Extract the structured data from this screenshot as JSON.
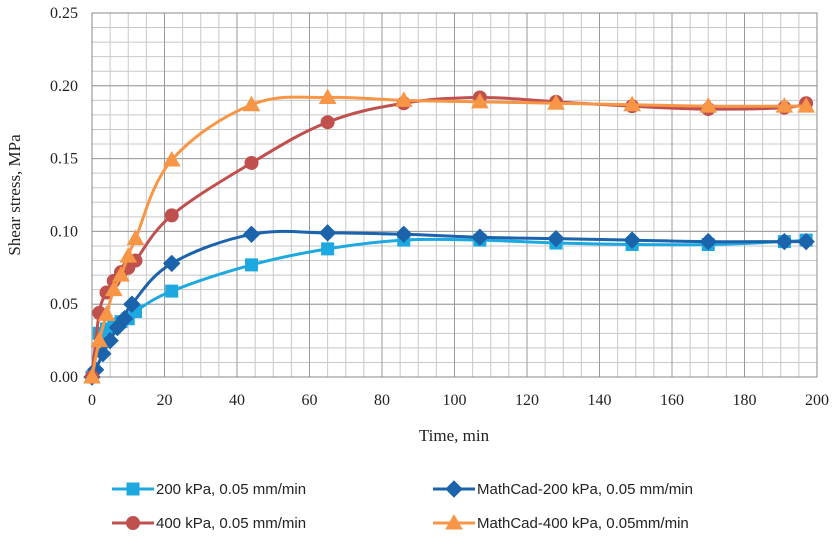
{
  "chart_data": {
    "type": "line",
    "title": "",
    "xlabel": "Time, min",
    "ylabel": "Shear stress, MPa",
    "xlim": [
      0,
      200
    ],
    "ylim": [
      0,
      0.25
    ],
    "x_ticks": [
      0,
      20,
      40,
      60,
      80,
      100,
      120,
      140,
      160,
      180,
      200
    ],
    "y_ticks": [
      0,
      0.05,
      0.1,
      0.15,
      0.2,
      0.25
    ],
    "x_tick_labels": [
      "0",
      "20",
      "40",
      "60",
      "80",
      "100",
      "120",
      "140",
      "160",
      "180",
      "200"
    ],
    "y_tick_labels": [
      "0.00",
      "0.05",
      "0.10",
      "0.15",
      "0.20",
      "0.25"
    ],
    "grid": true,
    "legend_position": "bottom",
    "series": [
      {
        "name": "200 kPa, 0.05 mm/min",
        "color": "#1ea8e0",
        "marker": "square",
        "x": [
          0,
          2,
          4,
          6,
          8,
          10,
          12,
          22,
          44,
          65,
          86,
          107,
          128,
          149,
          170,
          191,
          197
        ],
        "y": [
          0,
          0.03,
          0.033,
          0.036,
          0.038,
          0.04,
          0.045,
          0.059,
          0.077,
          0.088,
          0.094,
          0.094,
          0.092,
          0.091,
          0.091,
          0.093,
          0.094
        ]
      },
      {
        "name": "MathCad-200 kPa, 0.05 mm/min",
        "color": "#1b63ab",
        "marker": "diamond",
        "x": [
          0,
          1,
          3,
          5,
          7,
          9,
          11,
          22,
          44,
          65,
          86,
          107,
          128,
          149,
          170,
          191,
          197
        ],
        "y": [
          0,
          0.005,
          0.016,
          0.025,
          0.034,
          0.04,
          0.05,
          0.078,
          0.098,
          0.099,
          0.098,
          0.096,
          0.095,
          0.094,
          0.093,
          0.093,
          0.093
        ]
      },
      {
        "name": "400 kPa, 0.05 mm/min",
        "color": "#c0504d",
        "marker": "circle",
        "x": [
          0,
          2,
          4,
          6,
          8,
          10,
          12,
          22,
          44,
          65,
          86,
          107,
          128,
          149,
          170,
          191,
          197
        ],
        "y": [
          0,
          0.044,
          0.058,
          0.066,
          0.072,
          0.075,
          0.08,
          0.111,
          0.147,
          0.175,
          0.188,
          0.192,
          0.189,
          0.186,
          0.184,
          0.185,
          0.188
        ]
      },
      {
        "name": "MathCad-400 kPa, 0.05mm/min",
        "color": "#f79646",
        "marker": "triangle",
        "x": [
          0,
          2,
          4,
          6,
          8,
          10,
          12,
          22,
          44,
          65,
          86,
          107,
          128,
          149,
          170,
          191,
          197
        ],
        "y": [
          0,
          0.025,
          0.043,
          0.06,
          0.07,
          0.083,
          0.095,
          0.149,
          0.187,
          0.192,
          0.19,
          0.189,
          0.188,
          0.187,
          0.186,
          0.186,
          0.186
        ]
      }
    ]
  }
}
